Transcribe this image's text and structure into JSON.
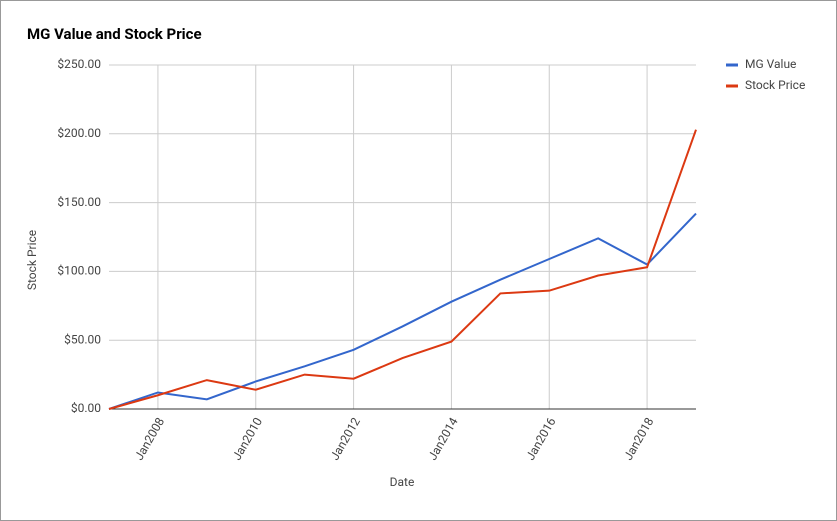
{
  "chart_data": {
    "type": "line",
    "title": "MG Value and Stock Price",
    "x_label": "Date",
    "y_label": "Stock Price",
    "x": [
      2007,
      2008,
      2009,
      2010,
      2011,
      2012,
      2013,
      2014,
      2015,
      2016,
      2017,
      2018,
      2019
    ],
    "series": [
      {
        "name": "MG Value",
        "color": "#3366cc",
        "values": [
          0,
          12,
          7,
          20,
          31,
          43,
          60,
          78,
          94,
          109,
          124,
          105,
          142
        ]
      },
      {
        "name": "Stock Price",
        "color": "#dc3912",
        "values": [
          0,
          10,
          21,
          14,
          25,
          22,
          37,
          49,
          84,
          86,
          97,
          103,
          203
        ]
      }
    ],
    "xlim": [
      2007,
      2019
    ],
    "xticks": [
      {
        "value": 2008,
        "label": "Jan2008"
      },
      {
        "value": 2010,
        "label": "Jan2010"
      },
      {
        "value": 2012,
        "label": "Jan2012"
      },
      {
        "value": 2014,
        "label": "Jan2014"
      },
      {
        "value": 2016,
        "label": "Jan2016"
      },
      {
        "value": 2018,
        "label": "Jan2018"
      }
    ],
    "ylim": [
      0,
      250
    ],
    "yticks": [
      {
        "value": 0,
        "label": "$0.00"
      },
      {
        "value": 50,
        "label": "$50.00"
      },
      {
        "value": 100,
        "label": "$100.00"
      },
      {
        "value": 150,
        "label": "$150.00"
      },
      {
        "value": 200,
        "label": "$200.00"
      },
      {
        "value": 250,
        "label": "$250.00"
      }
    ],
    "grid": true,
    "legend": "right"
  }
}
